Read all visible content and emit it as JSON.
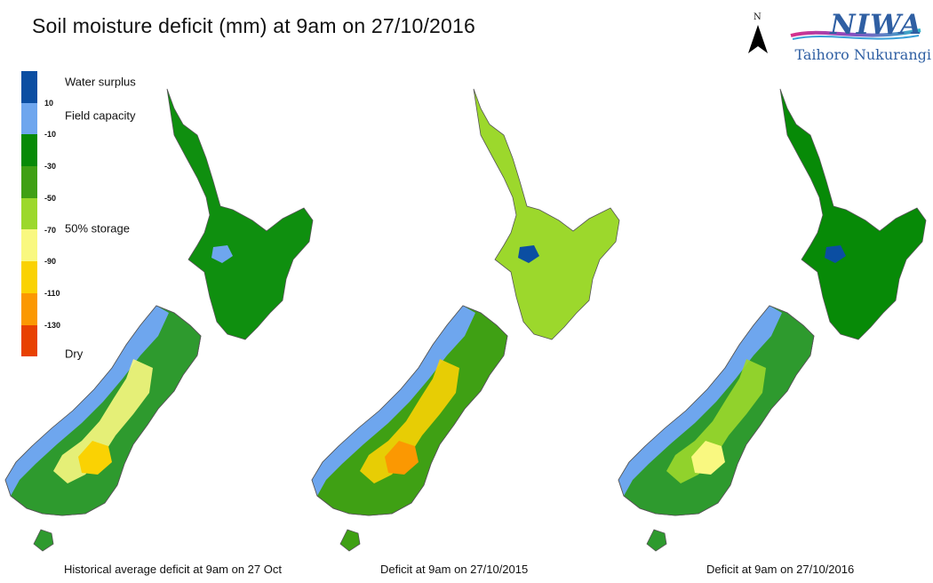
{
  "title": "Soil moisture deficit (mm) at  9am on 27/10/2016",
  "north_label": "N",
  "logo": {
    "name": "NIWA",
    "subtitle": "Taihoro Nukurangi"
  },
  "legend": {
    "colors": [
      "#0b4ea2",
      "#6ea6ee",
      "#078a07",
      "#3fa014",
      "#9cd82c",
      "#f9f880",
      "#fad203",
      "#fb9802",
      "#e84101"
    ],
    "ticks": [
      "10",
      "-10",
      "-30",
      "-50",
      "-70",
      "-90",
      "-110",
      "-130"
    ],
    "labels": {
      "surplus": "Water surplus",
      "field_capacity": "Field capacity",
      "storage": "50% storage",
      "dry": "Dry"
    }
  },
  "maps": [
    {
      "caption": "Historical average deficit at 9am on 27 Oct",
      "north_fill": "#0f8f0f",
      "south_fill": "#2e9a2e",
      "west_fill": "#6ea6ee",
      "dry_fill": "#f9f880",
      "core_fill": "#fad203",
      "blue_patch": "#6ea6ee"
    },
    {
      "caption": "Deficit at  9am on 27/10/2015",
      "north_fill": "#9cd82c",
      "south_fill": "#3fa014",
      "west_fill": "#6ea6ee",
      "dry_fill": "#fad203",
      "core_fill": "#fb9802",
      "blue_patch": "#0b4ea2"
    },
    {
      "caption": "Deficit at  9am on 27/10/2016",
      "north_fill": "#078a07",
      "south_fill": "#2e9a2e",
      "west_fill": "#6ea6ee",
      "dry_fill": "#9cd82c",
      "core_fill": "#f9f880",
      "blue_patch": "#0b4ea2"
    }
  ]
}
